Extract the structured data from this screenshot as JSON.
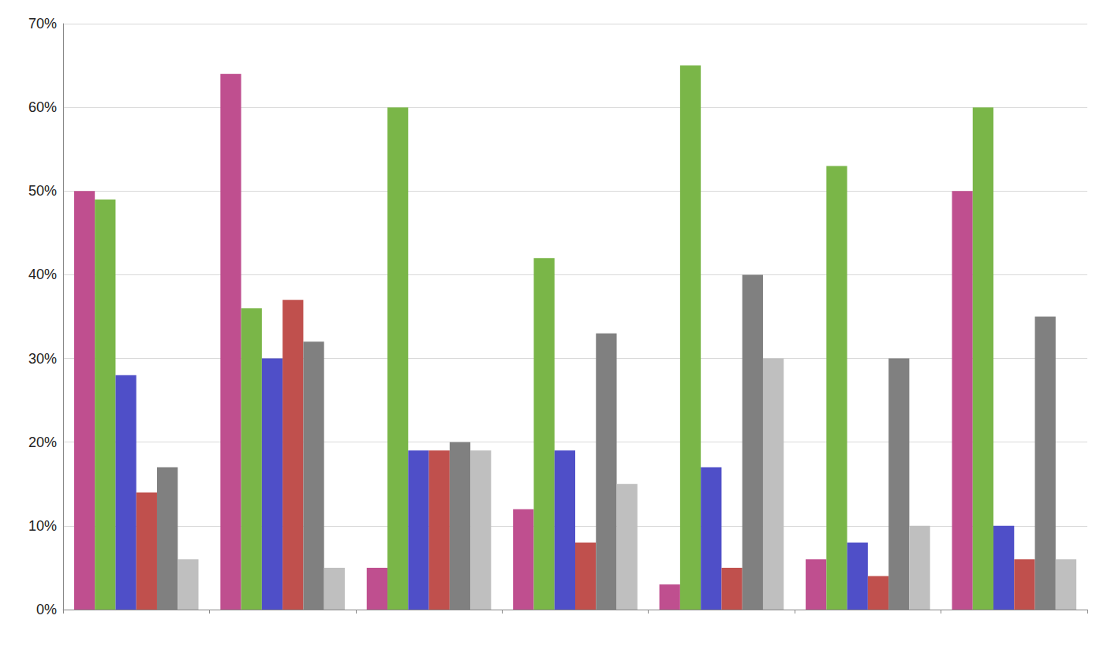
{
  "chart_data": {
    "type": "bar",
    "categories": [
      null,
      null,
      null,
      null,
      null,
      null,
      null
    ],
    "series": [
      {
        "color": "#bf4f8f",
        "values": [
          50,
          64,
          5,
          12,
          3,
          6,
          50
        ]
      },
      {
        "color": "#7ab648",
        "values": [
          49,
          36,
          60,
          42,
          65,
          53,
          60
        ]
      },
      {
        "color": "#4f4fc8",
        "values": [
          28,
          30,
          19,
          19,
          17,
          8,
          10
        ]
      },
      {
        "color": "#c0504d",
        "values": [
          14,
          37,
          19,
          8,
          5,
          4,
          6
        ]
      },
      {
        "color": "#808080",
        "values": [
          17,
          32,
          20,
          33,
          40,
          30,
          35
        ]
      },
      {
        "color": "#bfbfbf",
        "values": [
          6,
          5,
          19,
          15,
          30,
          10,
          6
        ]
      }
    ],
    "ylim": [
      0,
      70
    ],
    "yticks": [
      {
        "value": 0,
        "label": "0%"
      },
      {
        "value": 10,
        "label": "10%"
      },
      {
        "value": 20,
        "label": "20%"
      },
      {
        "value": 30,
        "label": "30%"
      },
      {
        "value": 40,
        "label": "40%"
      },
      {
        "value": 50,
        "label": "50%"
      },
      {
        "value": 60,
        "label": "60%"
      },
      {
        "value": 70,
        "label": "70%"
      }
    ],
    "grid": true,
    "tick_labels": "y"
  }
}
